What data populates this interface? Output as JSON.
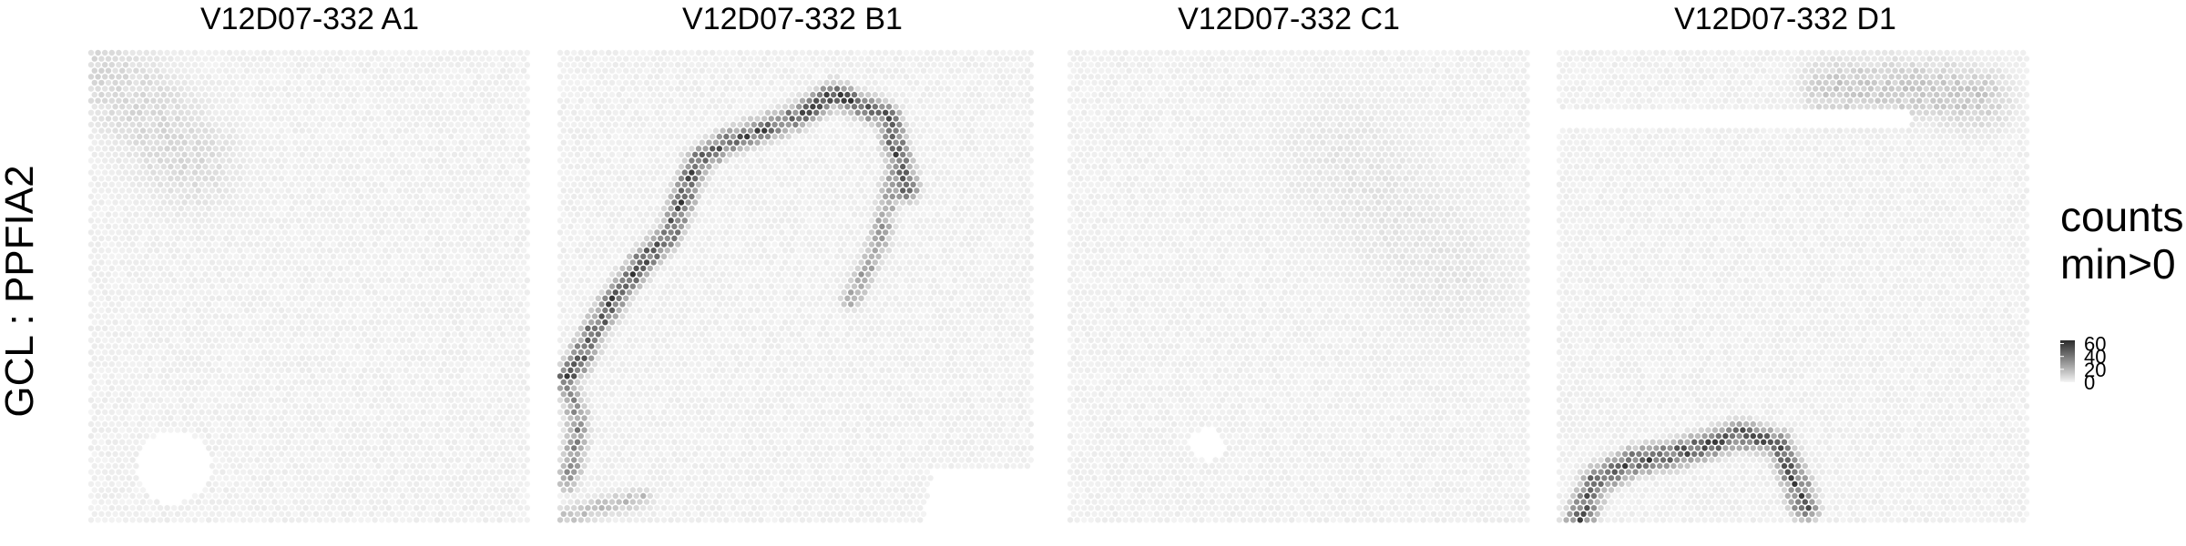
{
  "chart_data": {
    "type": "heatmap",
    "kind": "spatial spot plot, grayscale counts",
    "row_label": "GCL : PPFIA2",
    "panels": [
      {
        "title": "V12D07-332  A1",
        "pattern": "diffuse",
        "hot_spots": "faint top-left region"
      },
      {
        "title": "V12D07-332  B1",
        "pattern": "curved band",
        "hot_spots": "dark curved band from lower-left rising to upper-right, with branch descending on right"
      },
      {
        "title": "V12D07-332  C1",
        "pattern": "diffuse",
        "hot_spots": "very faint background"
      },
      {
        "title": "V12D07-332  D1",
        "pattern": "arc",
        "hot_spots": "dark arc at bottom-left and faint band along top-right"
      }
    ],
    "legend": {
      "title_lines": [
        "counts",
        "min>0"
      ],
      "ticks": [
        "60",
        "40",
        "20",
        "0"
      ],
      "range": [
        0,
        65
      ],
      "colors": {
        "low": "#f4f4f4",
        "high": "#2a2a2a"
      }
    }
  }
}
